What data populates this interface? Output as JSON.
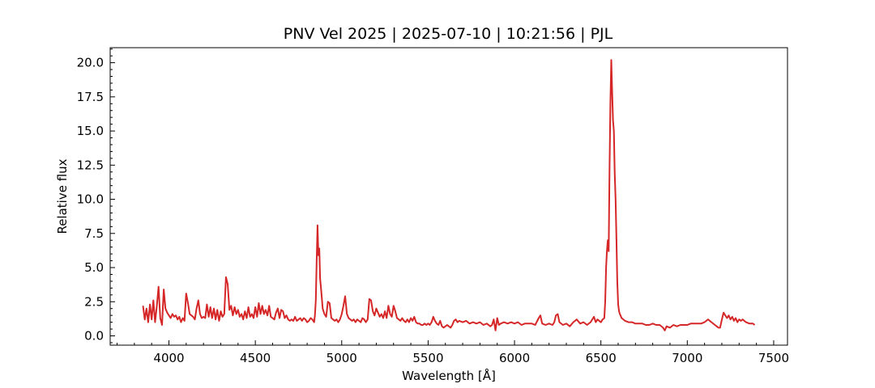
{
  "chart_data": {
    "type": "line",
    "title": "PNV Vel 2025 | 2025-07-10 | 10:21:56 | PJL",
    "xlabel": "Wavelength [Å]",
    "ylabel": "Relative flux",
    "xlim": [
      3660,
      7580
    ],
    "ylim": [
      -0.68,
      21.1
    ],
    "x_ticks": [
      4000,
      4500,
      5000,
      5500,
      6000,
      6500,
      7000,
      7500
    ],
    "x_tick_labels": [
      "4000",
      "4500",
      "5000",
      "5500",
      "6000",
      "6500",
      "7000",
      "7500"
    ],
    "y_ticks": [
      0,
      2.5,
      5,
      7.5,
      10,
      12.5,
      15,
      17.5,
      20
    ],
    "y_tick_labels": [
      "0.0",
      "2.5",
      "5.0",
      "7.5",
      "10.0",
      "12.5",
      "15.0",
      "17.5",
      "20.0"
    ],
    "grid": false,
    "legend": "none",
    "series": [
      {
        "color": "#d62728",
        "points": [
          [
            3850,
            2.2
          ],
          [
            3860,
            1.2
          ],
          [
            3870,
            2.0
          ],
          [
            3880,
            1.0
          ],
          [
            3890,
            2.3
          ],
          [
            3900,
            1.2
          ],
          [
            3910,
            2.6
          ],
          [
            3920,
            1.0
          ],
          [
            3930,
            2.2
          ],
          [
            3940,
            3.6
          ],
          [
            3950,
            1.3
          ],
          [
            3960,
            0.8
          ],
          [
            3970,
            3.4
          ],
          [
            3980,
            2.0
          ],
          [
            3990,
            1.7
          ],
          [
            4000,
            1.5
          ],
          [
            4010,
            1.3
          ],
          [
            4020,
            1.6
          ],
          [
            4030,
            1.4
          ],
          [
            4040,
            1.5
          ],
          [
            4050,
            1.2
          ],
          [
            4060,
            1.4
          ],
          [
            4070,
            1.0
          ],
          [
            4080,
            1.3
          ],
          [
            4090,
            1.1
          ],
          [
            4100,
            3.1
          ],
          [
            4110,
            2.4
          ],
          [
            4120,
            1.6
          ],
          [
            4130,
            1.5
          ],
          [
            4140,
            1.4
          ],
          [
            4150,
            1.2
          ],
          [
            4160,
            2.0
          ],
          [
            4170,
            2.6
          ],
          [
            4180,
            1.6
          ],
          [
            4190,
            1.3
          ],
          [
            4200,
            1.4
          ],
          [
            4210,
            1.3
          ],
          [
            4220,
            2.3
          ],
          [
            4230,
            1.4
          ],
          [
            4240,
            2.1
          ],
          [
            4250,
            1.3
          ],
          [
            4260,
            2.0
          ],
          [
            4270,
            1.2
          ],
          [
            4280,
            1.9
          ],
          [
            4290,
            1.1
          ],
          [
            4300,
            1.8
          ],
          [
            4310,
            1.4
          ],
          [
            4320,
            1.6
          ],
          [
            4330,
            4.3
          ],
          [
            4340,
            3.8
          ],
          [
            4350,
            1.9
          ],
          [
            4360,
            2.2
          ],
          [
            4370,
            1.5
          ],
          [
            4380,
            2.1
          ],
          [
            4390,
            1.6
          ],
          [
            4400,
            1.9
          ],
          [
            4410,
            1.4
          ],
          [
            4420,
            1.6
          ],
          [
            4430,
            1.2
          ],
          [
            4440,
            1.8
          ],
          [
            4450,
            1.3
          ],
          [
            4460,
            2.1
          ],
          [
            4470,
            1.4
          ],
          [
            4480,
            1.6
          ],
          [
            4490,
            1.3
          ],
          [
            4500,
            2.1
          ],
          [
            4510,
            1.4
          ],
          [
            4520,
            2.4
          ],
          [
            4530,
            1.6
          ],
          [
            4540,
            2.2
          ],
          [
            4550,
            1.6
          ],
          [
            4560,
            1.9
          ],
          [
            4570,
            1.5
          ],
          [
            4580,
            2.2
          ],
          [
            4590,
            1.4
          ],
          [
            4600,
            1.3
          ],
          [
            4610,
            1.2
          ],
          [
            4620,
            1.7
          ],
          [
            4630,
            2.0
          ],
          [
            4640,
            1.3
          ],
          [
            4650,
            1.9
          ],
          [
            4660,
            1.8
          ],
          [
            4670,
            1.3
          ],
          [
            4680,
            1.5
          ],
          [
            4690,
            1.2
          ],
          [
            4700,
            1.1
          ],
          [
            4710,
            1.2
          ],
          [
            4720,
            1.1
          ],
          [
            4730,
            1.4
          ],
          [
            4740,
            1.1
          ],
          [
            4750,
            1.2
          ],
          [
            4760,
            1.3
          ],
          [
            4770,
            1.1
          ],
          [
            4780,
            1.3
          ],
          [
            4790,
            1.2
          ],
          [
            4800,
            1.0
          ],
          [
            4810,
            1.1
          ],
          [
            4820,
            1.3
          ],
          [
            4830,
            1.2
          ],
          [
            4840,
            1.0
          ],
          [
            4845,
            1.5
          ],
          [
            4850,
            2.6
          ],
          [
            4855,
            5.6
          ],
          [
            4860,
            8.1
          ],
          [
            4865,
            5.9
          ],
          [
            4870,
            6.4
          ],
          [
            4875,
            4.2
          ],
          [
            4880,
            3.5
          ],
          [
            4890,
            2.0
          ],
          [
            4900,
            1.6
          ],
          [
            4910,
            1.4
          ],
          [
            4920,
            2.5
          ],
          [
            4930,
            2.4
          ],
          [
            4940,
            1.3
          ],
          [
            4950,
            1.2
          ],
          [
            4960,
            1.1
          ],
          [
            4970,
            1.2
          ],
          [
            4980,
            1.0
          ],
          [
            4990,
            1.2
          ],
          [
            5000,
            1.6
          ],
          [
            5010,
            2.2
          ],
          [
            5020,
            2.9
          ],
          [
            5030,
            1.6
          ],
          [
            5040,
            1.3
          ],
          [
            5050,
            1.2
          ],
          [
            5060,
            1.1
          ],
          [
            5070,
            1.2
          ],
          [
            5080,
            1.0
          ],
          [
            5090,
            1.2
          ],
          [
            5100,
            1.1
          ],
          [
            5110,
            1.0
          ],
          [
            5120,
            1.3
          ],
          [
            5130,
            1.2
          ],
          [
            5140,
            1.0
          ],
          [
            5150,
            1.2
          ],
          [
            5160,
            2.7
          ],
          [
            5170,
            2.6
          ],
          [
            5180,
            1.8
          ],
          [
            5190,
            1.5
          ],
          [
            5200,
            2.0
          ],
          [
            5210,
            1.7
          ],
          [
            5220,
            1.4
          ],
          [
            5230,
            1.6
          ],
          [
            5240,
            1.3
          ],
          [
            5250,
            1.8
          ],
          [
            5260,
            1.3
          ],
          [
            5270,
            2.2
          ],
          [
            5280,
            1.6
          ],
          [
            5290,
            1.4
          ],
          [
            5300,
            2.2
          ],
          [
            5310,
            1.8
          ],
          [
            5320,
            1.3
          ],
          [
            5330,
            1.2
          ],
          [
            5340,
            1.1
          ],
          [
            5350,
            1.3
          ],
          [
            5360,
            1.1
          ],
          [
            5370,
            1.0
          ],
          [
            5380,
            1.2
          ],
          [
            5390,
            1.0
          ],
          [
            5400,
            1.3
          ],
          [
            5410,
            1.1
          ],
          [
            5420,
            1.4
          ],
          [
            5430,
            1.0
          ],
          [
            5440,
            0.9
          ],
          [
            5450,
            0.9
          ],
          [
            5460,
            0.8
          ],
          [
            5470,
            0.8
          ],
          [
            5480,
            0.9
          ],
          [
            5490,
            0.8
          ],
          [
            5500,
            0.9
          ],
          [
            5510,
            0.8
          ],
          [
            5520,
            1.0
          ],
          [
            5530,
            1.4
          ],
          [
            5540,
            1.1
          ],
          [
            5550,
            0.9
          ],
          [
            5560,
            0.8
          ],
          [
            5570,
            1.1
          ],
          [
            5580,
            0.7
          ],
          [
            5590,
            0.6
          ],
          [
            5600,
            0.7
          ],
          [
            5610,
            0.8
          ],
          [
            5620,
            0.7
          ],
          [
            5630,
            0.6
          ],
          [
            5640,
            0.8
          ],
          [
            5650,
            1.1
          ],
          [
            5660,
            1.2
          ],
          [
            5670,
            1.0
          ],
          [
            5680,
            1.1
          ],
          [
            5700,
            1.0
          ],
          [
            5720,
            1.1
          ],
          [
            5740,
            0.9
          ],
          [
            5760,
            1.0
          ],
          [
            5780,
            0.9
          ],
          [
            5800,
            1.0
          ],
          [
            5820,
            0.8
          ],
          [
            5840,
            0.9
          ],
          [
            5860,
            0.7
          ],
          [
            5870,
            0.8
          ],
          [
            5880,
            1.2
          ],
          [
            5890,
            0.4
          ],
          [
            5900,
            1.3
          ],
          [
            5910,
            0.8
          ],
          [
            5920,
            0.9
          ],
          [
            5940,
            1.0
          ],
          [
            5960,
            0.9
          ],
          [
            5980,
            1.0
          ],
          [
            6000,
            0.9
          ],
          [
            6020,
            1.0
          ],
          [
            6040,
            0.8
          ],
          [
            6060,
            0.9
          ],
          [
            6080,
            0.9
          ],
          [
            6100,
            0.9
          ],
          [
            6120,
            0.8
          ],
          [
            6140,
            1.3
          ],
          [
            6150,
            1.5
          ],
          [
            6160,
            0.9
          ],
          [
            6180,
            0.8
          ],
          [
            6200,
            0.9
          ],
          [
            6220,
            0.8
          ],
          [
            6230,
            1.0
          ],
          [
            6240,
            1.5
          ],
          [
            6250,
            1.6
          ],
          [
            6260,
            1.0
          ],
          [
            6280,
            0.8
          ],
          [
            6300,
            0.9
          ],
          [
            6320,
            0.7
          ],
          [
            6340,
            1.0
          ],
          [
            6360,
            1.2
          ],
          [
            6380,
            0.9
          ],
          [
            6400,
            1.0
          ],
          [
            6420,
            0.8
          ],
          [
            6440,
            1.0
          ],
          [
            6460,
            1.4
          ],
          [
            6470,
            1.0
          ],
          [
            6480,
            1.2
          ],
          [
            6490,
            1.1
          ],
          [
            6500,
            1.0
          ],
          [
            6510,
            1.2
          ],
          [
            6520,
            1.3
          ],
          [
            6525,
            2.5
          ],
          [
            6530,
            5.0
          ],
          [
            6535,
            6.2
          ],
          [
            6540,
            7.0
          ],
          [
            6545,
            6.2
          ],
          [
            6550,
            12.0
          ],
          [
            6555,
            17.0
          ],
          [
            6560,
            20.2
          ],
          [
            6565,
            18.0
          ],
          [
            6570,
            15.8
          ],
          [
            6575,
            15.0
          ],
          [
            6580,
            12.0
          ],
          [
            6585,
            10.0
          ],
          [
            6590,
            7.0
          ],
          [
            6595,
            4.0
          ],
          [
            6600,
            2.3
          ],
          [
            6605,
            1.8
          ],
          [
            6610,
            1.6
          ],
          [
            6620,
            1.3
          ],
          [
            6640,
            1.1
          ],
          [
            6660,
            1.0
          ],
          [
            6680,
            1.0
          ],
          [
            6700,
            0.9
          ],
          [
            6720,
            0.9
          ],
          [
            6740,
            0.9
          ],
          [
            6760,
            0.8
          ],
          [
            6780,
            0.8
          ],
          [
            6800,
            0.9
          ],
          [
            6820,
            0.8
          ],
          [
            6840,
            0.8
          ],
          [
            6860,
            0.6
          ],
          [
            6870,
            0.4
          ],
          [
            6880,
            0.7
          ],
          [
            6900,
            0.6
          ],
          [
            6920,
            0.8
          ],
          [
            6940,
            0.7
          ],
          [
            6960,
            0.8
          ],
          [
            6980,
            0.8
          ],
          [
            7000,
            0.8
          ],
          [
            7020,
            0.9
          ],
          [
            7040,
            0.9
          ],
          [
            7060,
            0.9
          ],
          [
            7080,
            0.9
          ],
          [
            7100,
            1.0
          ],
          [
            7120,
            1.2
          ],
          [
            7140,
            1.0
          ],
          [
            7160,
            0.8
          ],
          [
            7170,
            0.7
          ],
          [
            7180,
            0.6
          ],
          [
            7190,
            0.6
          ],
          [
            7200,
            1.2
          ],
          [
            7210,
            1.7
          ],
          [
            7220,
            1.5
          ],
          [
            7230,
            1.3
          ],
          [
            7240,
            1.5
          ],
          [
            7250,
            1.2
          ],
          [
            7260,
            1.4
          ],
          [
            7270,
            1.1
          ],
          [
            7280,
            1.3
          ],
          [
            7290,
            1.0
          ],
          [
            7300,
            1.2
          ],
          [
            7310,
            1.1
          ],
          [
            7320,
            1.2
          ],
          [
            7340,
            1.0
          ],
          [
            7360,
            0.9
          ],
          [
            7380,
            0.9
          ],
          [
            7390,
            0.8
          ]
        ]
      }
    ]
  }
}
